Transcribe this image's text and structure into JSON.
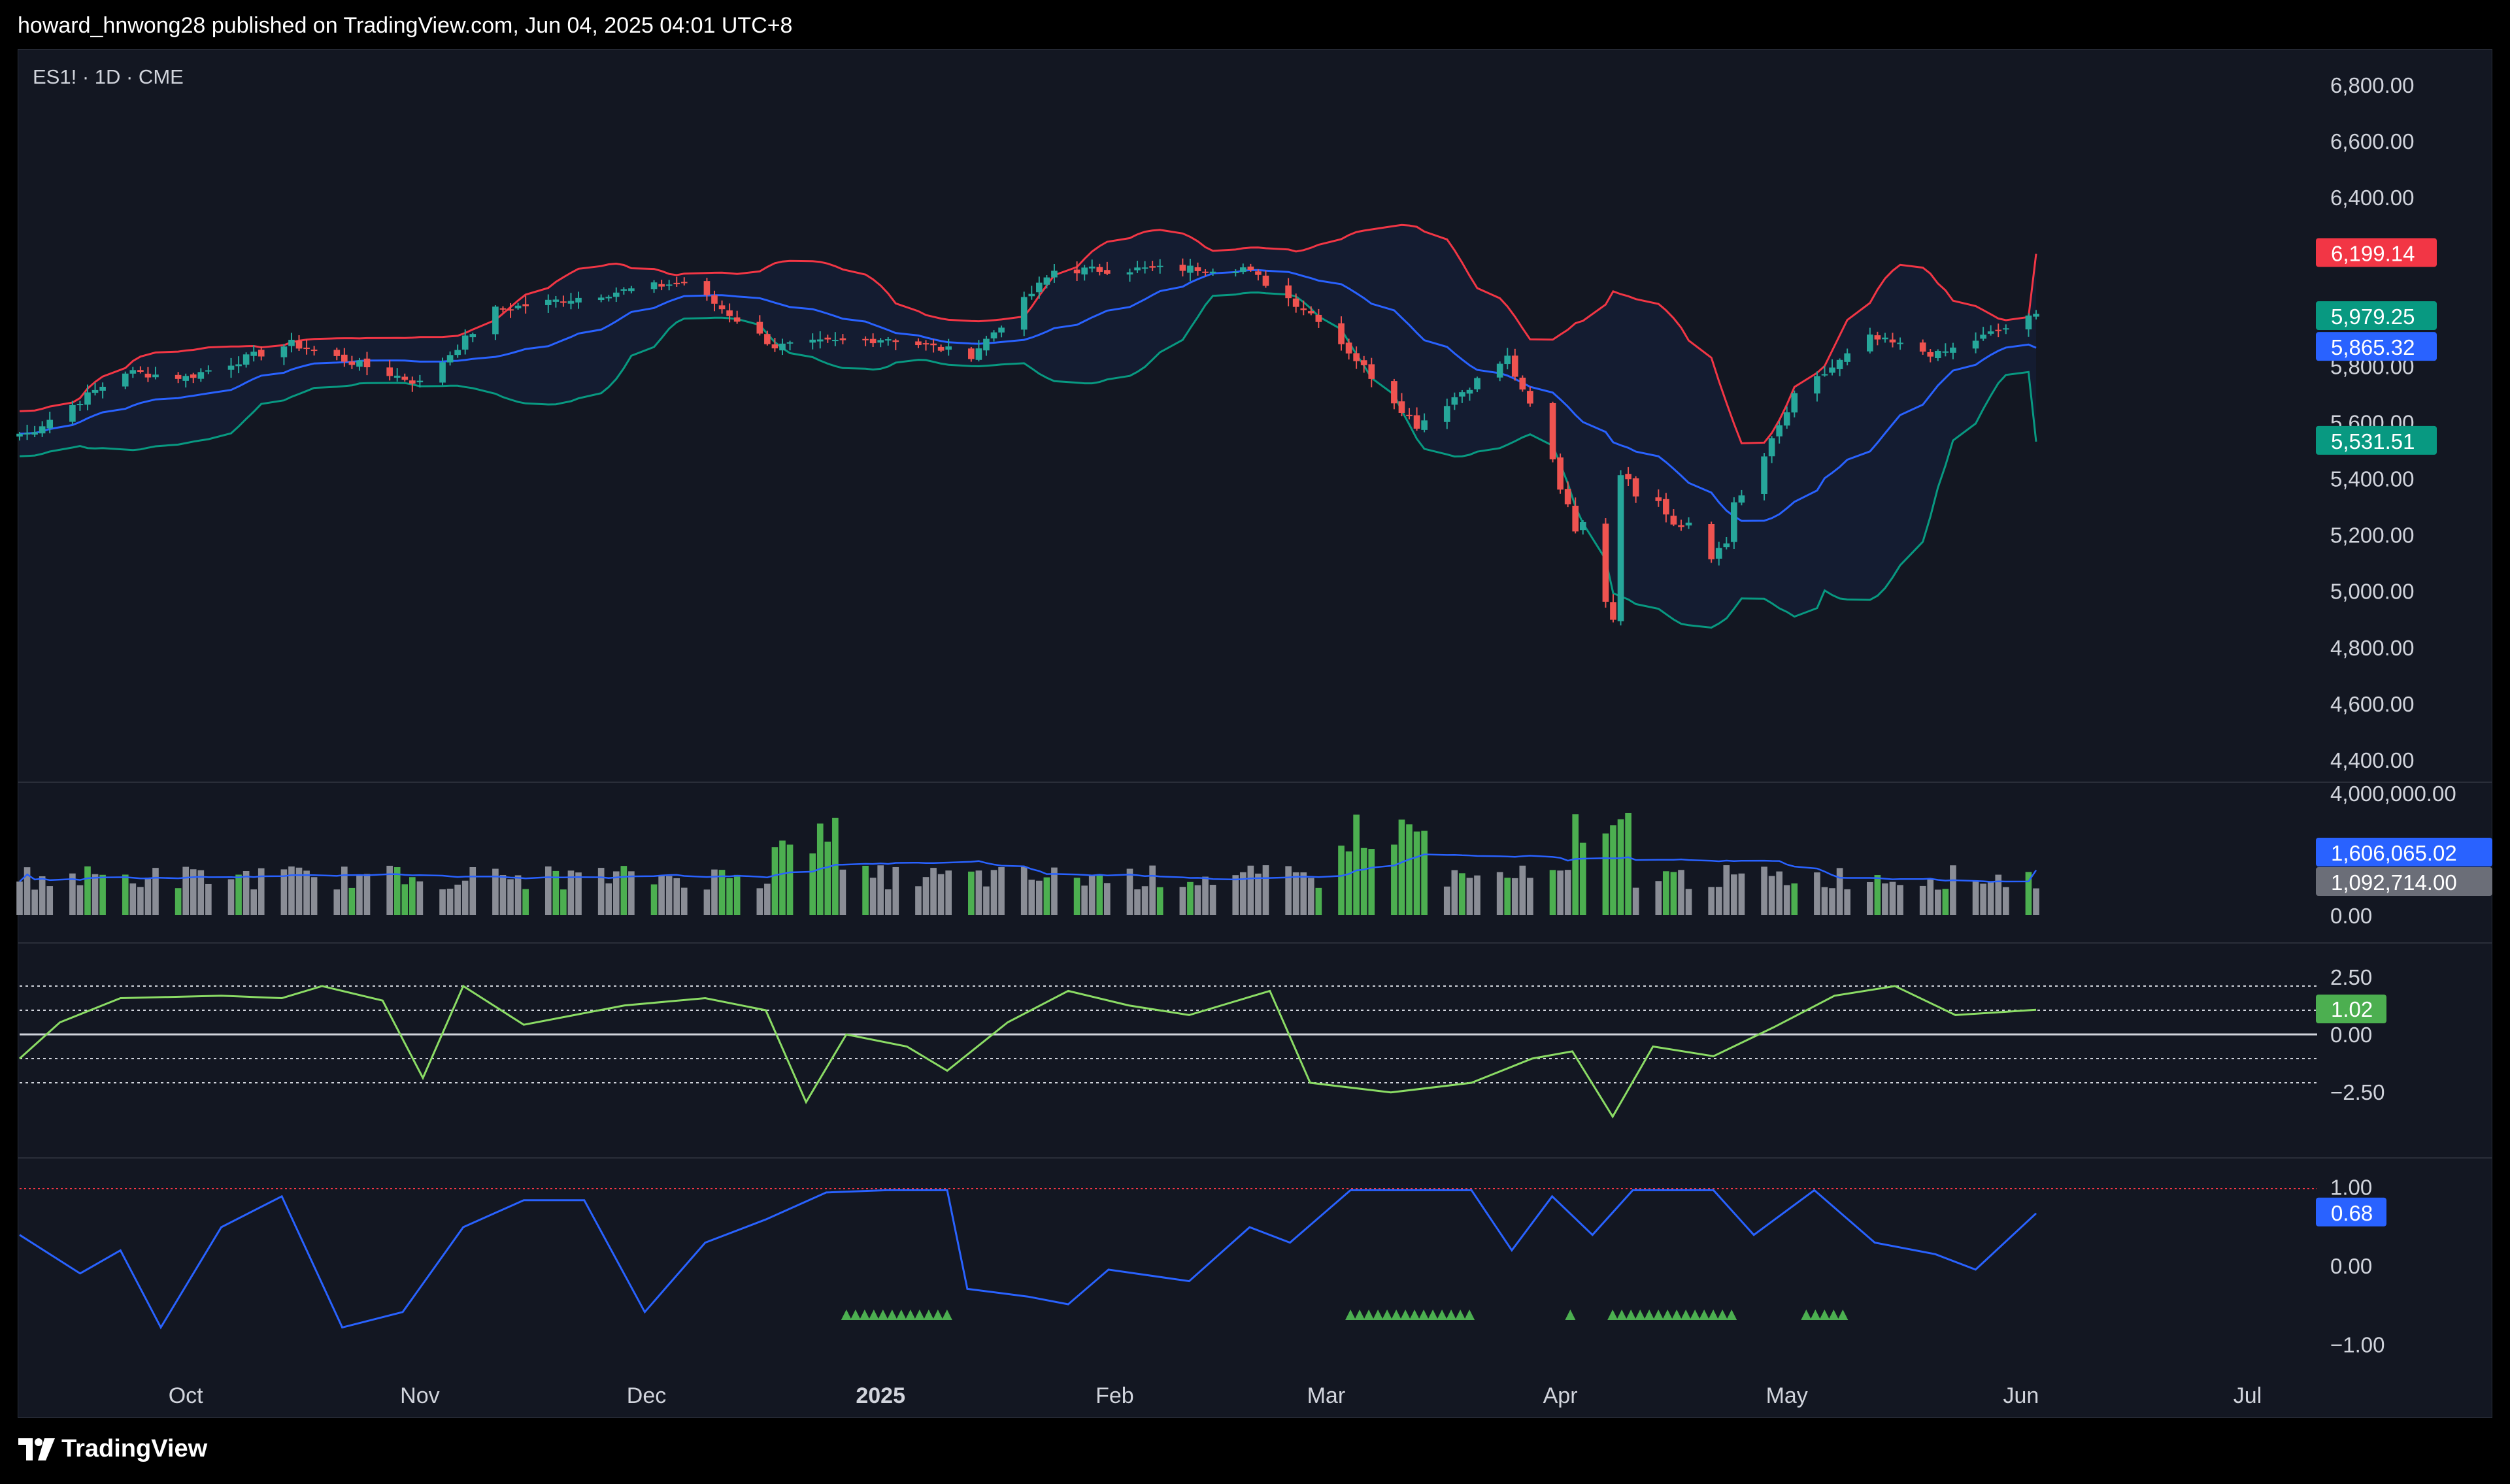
{
  "header": {
    "publisher_line": "howard_hnwong28 published on TradingView.com, Jun 04, 2025 04:01 UTC+8"
  },
  "symbol": {
    "label": "ES1! · 1D · CME"
  },
  "branding": {
    "logo_text": "TradingView"
  },
  "colors": {
    "background": "#131722",
    "up_candle": "#26a69a",
    "down_candle": "#ef5350",
    "upper_band": "#f23645",
    "lower_band": "#089981",
    "basis": "#2962ff",
    "volume_up": "#4caf50",
    "volume_down": "#8a8d96",
    "volume_ma": "#2962ff",
    "oscillator": "#8bdc65",
    "normalized": "#2962ff"
  },
  "price_axis": {
    "ticks": [
      "6,800.00",
      "6,600.00",
      "6,400.00",
      "5,800.00",
      "5,600.00",
      "5,400.00",
      "5,200.00",
      "5,000.00",
      "4,800.00",
      "4,600.00",
      "4,400.00"
    ],
    "tags": {
      "upper": "6,199.14",
      "last": "5,979.25",
      "basis": "5,865.32",
      "lower": "5,531.51"
    }
  },
  "volume_axis": {
    "ticks": [
      "4,000,000.00",
      "0.00"
    ],
    "tags": {
      "ma": "1,606,065.02",
      "volume": "1,092,714.00"
    }
  },
  "oscillator_axis": {
    "ticks": [
      "2.50",
      "0.00",
      "−2.50"
    ],
    "tag": "1.02"
  },
  "normalized_axis": {
    "ticks": [
      "1.00",
      "0.00",
      "−1.00"
    ],
    "tag": "0.68"
  },
  "time_axis": {
    "labels": [
      "Oct",
      "Nov",
      "Dec",
      "2025",
      "Feb",
      "Mar",
      "Apr",
      "May",
      "Jun",
      "Jul"
    ]
  },
  "chart_data": {
    "type": "candlestick",
    "symbol": "ES1!",
    "interval": "1D",
    "exchange": "CME",
    "price_range": [
      4400,
      6900
    ],
    "close_anchors": {
      "x_dates": [
        "2024-09-10",
        "2024-09-23",
        "2024-10-01",
        "2024-10-15",
        "2024-11-01",
        "2024-11-11",
        "2024-12-06",
        "2024-12-18",
        "2025-01-02",
        "2025-01-13",
        "2025-01-24",
        "2025-02-18",
        "2025-02-28",
        "2025-03-13",
        "2025-03-25",
        "2025-04-04",
        "2025-04-08",
        "2025-04-09",
        "2025-04-21",
        "2025-05-02",
        "2025-05-12",
        "2025-05-21",
        "2025-06-03"
      ],
      "close": [
        5560,
        5780,
        5760,
        5880,
        5740,
        6000,
        6100,
        5870,
        5900,
        5840,
        6140,
        6150,
        5970,
        5590,
        5830,
        5200,
        4950,
        5450,
        5110,
        5690,
        5900,
        5840,
        5979.25
      ]
    },
    "bollinger_last": {
      "upper": 6199.14,
      "basis": 5865.32,
      "lower": 5531.51
    },
    "volume": {
      "max": 4000000,
      "last_volume": 1092714.0,
      "last_ma": 1606065.02,
      "spike_periods": [
        "2024-12-18 to 2024-12-26",
        "2025-03-03 to 2025-03-14",
        "2025-04-03 to 2025-04-10"
      ]
    },
    "oscillator": {
      "levels": [
        2.0,
        1.0,
        0.0,
        -1.0,
        -2.0
      ],
      "last": 1.02,
      "series": [
        [
          0,
          -1.0
        ],
        [
          0.02,
          0.5
        ],
        [
          0.05,
          1.5
        ],
        [
          0.1,
          1.6
        ],
        [
          0.13,
          1.5
        ],
        [
          0.15,
          2.0
        ],
        [
          0.18,
          1.4
        ],
        [
          0.2,
          -1.8
        ],
        [
          0.22,
          2.0
        ],
        [
          0.25,
          0.4
        ],
        [
          0.3,
          1.2
        ],
        [
          0.34,
          1.5
        ],
        [
          0.37,
          1.0
        ],
        [
          0.39,
          -2.8
        ],
        [
          0.41,
          0.0
        ],
        [
          0.44,
          -0.5
        ],
        [
          0.46,
          -1.5
        ],
        [
          0.49,
          0.5
        ],
        [
          0.52,
          1.8
        ],
        [
          0.55,
          1.2
        ],
        [
          0.58,
          0.8
        ],
        [
          0.62,
          1.8
        ],
        [
          0.64,
          -2.0
        ],
        [
          0.68,
          -2.4
        ],
        [
          0.72,
          -2.0
        ],
        [
          0.75,
          -1.0
        ],
        [
          0.77,
          -0.7
        ],
        [
          0.79,
          -3.4
        ],
        [
          0.81,
          -0.5
        ],
        [
          0.84,
          -0.9
        ],
        [
          0.87,
          0.3
        ],
        [
          0.9,
          1.6
        ],
        [
          0.93,
          2.0
        ],
        [
          0.96,
          0.8
        ],
        [
          1.0,
          1.02
        ]
      ]
    },
    "normalized": {
      "range": [
        -1.0,
        1.0
      ],
      "threshold": 1.0,
      "last": 0.68,
      "series": [
        [
          0,
          0.4
        ],
        [
          0.03,
          -0.1
        ],
        [
          0.05,
          0.2
        ],
        [
          0.07,
          -0.8
        ],
        [
          0.1,
          0.5
        ],
        [
          0.13,
          0.9
        ],
        [
          0.16,
          -0.8
        ],
        [
          0.19,
          -0.6
        ],
        [
          0.22,
          0.5
        ],
        [
          0.25,
          0.85
        ],
        [
          0.28,
          0.85
        ],
        [
          0.31,
          -0.6
        ],
        [
          0.34,
          0.3
        ],
        [
          0.37,
          0.6
        ],
        [
          0.4,
          0.95
        ],
        [
          0.43,
          0.98
        ],
        [
          0.46,
          0.98
        ],
        [
          0.47,
          -0.3
        ],
        [
          0.5,
          -0.4
        ],
        [
          0.52,
          -0.5
        ],
        [
          0.54,
          -0.05
        ],
        [
          0.58,
          -0.2
        ],
        [
          0.61,
          0.5
        ],
        [
          0.63,
          0.3
        ],
        [
          0.66,
          0.98
        ],
        [
          0.69,
          0.98
        ],
        [
          0.72,
          0.98
        ],
        [
          0.74,
          0.2
        ],
        [
          0.76,
          0.9
        ],
        [
          0.78,
          0.4
        ],
        [
          0.8,
          0.98
        ],
        [
          0.84,
          0.98
        ],
        [
          0.86,
          0.4
        ],
        [
          0.89,
          0.98
        ],
        [
          0.92,
          0.3
        ],
        [
          0.95,
          0.15
        ],
        [
          0.97,
          -0.05
        ],
        [
          1.0,
          0.68
        ]
      ],
      "signal_markers": [
        [
          0.41,
          0.46
        ],
        [
          0.66,
          0.72
        ],
        [
          0.769,
          0.771
        ],
        [
          0.79,
          0.85
        ],
        [
          0.886,
          0.905
        ]
      ]
    }
  }
}
